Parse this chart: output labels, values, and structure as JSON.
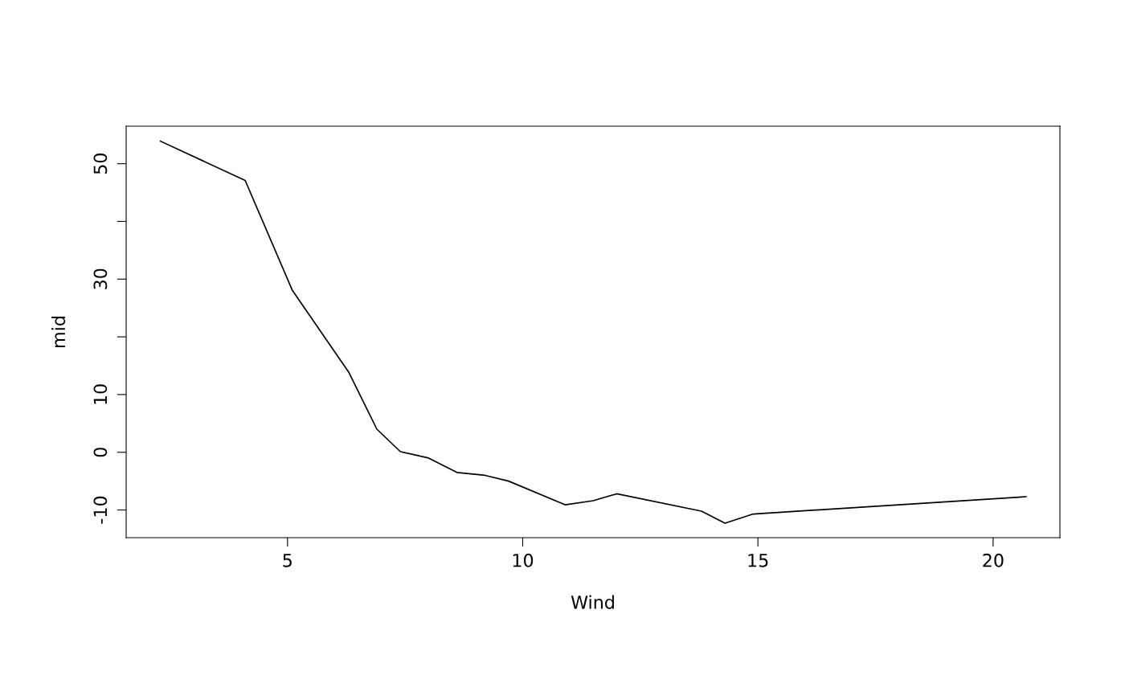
{
  "chart_data": {
    "type": "line",
    "xlabel": "Wind",
    "ylabel": "mid",
    "x": [
      2.3,
      4.1,
      5.1,
      6.3,
      6.9,
      7.4,
      8.0,
      8.6,
      9.2,
      9.7,
      10.9,
      11.5,
      12.0,
      13.8,
      14.3,
      14.9,
      20.7
    ],
    "series": [
      {
        "color": "#000000",
        "values": [
          53.9,
          47.1,
          28.1,
          13.9,
          4.0,
          0.1,
          -1.0,
          -3.5,
          -4.0,
          -5.0,
          -9.1,
          -8.4,
          -7.2,
          -10.2,
          -12.3,
          -10.7,
          -7.7
        ]
      }
    ],
    "xlim": [
      1.57,
      21.42
    ],
    "ylim": [
      -14.8,
      56.5
    ],
    "xticks": [
      5,
      10,
      15,
      20
    ],
    "yticks": [
      -10,
      0,
      10,
      {
        "value": 20,
        "label": null
      },
      30,
      {
        "value": 40,
        "label": null
      },
      50
    ],
    "grid": false,
    "marker": "none",
    "line_style": "solid"
  }
}
